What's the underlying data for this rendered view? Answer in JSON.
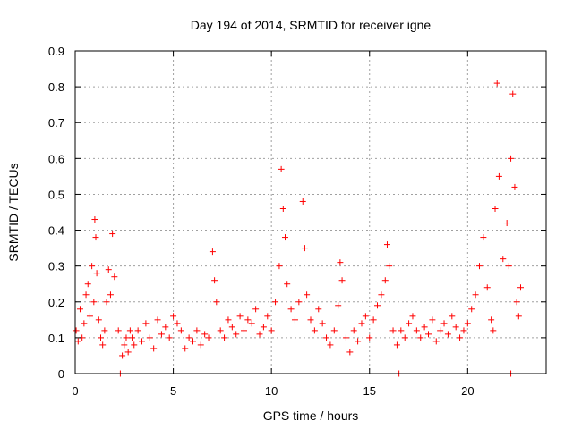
{
  "chart_data": {
    "type": "scatter",
    "title": "Day 194 of 2014, SRMTID for receiver igne",
    "xlabel": "GPS time / hours",
    "ylabel": "SRMTID / TECUs",
    "xlim": [
      0,
      24
    ],
    "ylim": [
      0,
      0.9
    ],
    "xticks": [
      0,
      5,
      10,
      15,
      20
    ],
    "yticks": [
      0,
      0.1,
      0.2,
      0.3,
      0.4,
      0.5,
      0.6,
      0.7,
      0.8,
      0.9
    ],
    "xtick_labels": [
      "0",
      "5",
      "10",
      "15",
      "20"
    ],
    "ytick_labels": [
      "0",
      "0.1",
      "0.2",
      "0.3",
      "0.4",
      "0.5",
      "0.6",
      "0.7",
      "0.8",
      "0.9"
    ],
    "grid": true,
    "marker": "+",
    "series_color": "#ff0000",
    "x": [
      0.05,
      0.15,
      0.25,
      0.35,
      0.45,
      0.55,
      0.65,
      0.75,
      0.85,
      0.95,
      1.0,
      1.05,
      1.1,
      1.2,
      1.3,
      1.4,
      1.5,
      1.6,
      1.7,
      1.8,
      1.9,
      2.0,
      2.2,
      2.4,
      2.5,
      2.6,
      2.7,
      2.8,
      2.9,
      3.0,
      3.2,
      3.4,
      3.6,
      3.8,
      4.0,
      4.2,
      4.4,
      4.6,
      4.8,
      5.0,
      5.2,
      5.4,
      5.6,
      5.8,
      6.0,
      6.2,
      6.4,
      6.6,
      6.8,
      7.0,
      7.1,
      7.2,
      7.4,
      7.6,
      7.8,
      8.0,
      8.2,
      8.4,
      8.6,
      8.8,
      9.0,
      9.2,
      9.4,
      9.6,
      9.8,
      10.0,
      10.2,
      10.4,
      10.5,
      10.6,
      10.7,
      10.8,
      11.0,
      11.2,
      11.4,
      11.6,
      11.7,
      11.8,
      12.0,
      12.2,
      12.4,
      12.6,
      12.8,
      13.0,
      13.2,
      13.4,
      13.5,
      13.6,
      13.8,
      14.0,
      14.2,
      14.4,
      14.6,
      14.8,
      15.0,
      15.2,
      15.4,
      15.6,
      15.8,
      15.9,
      16.0,
      16.2,
      16.4,
      16.6,
      16.8,
      17.0,
      17.2,
      17.4,
      17.6,
      17.8,
      18.0,
      18.2,
      18.4,
      18.6,
      18.8,
      19.0,
      19.2,
      19.4,
      19.6,
      19.8,
      20.0,
      20.2,
      20.4,
      20.6,
      20.8,
      21.0,
      21.2,
      21.3,
      21.4,
      21.5,
      21.6,
      21.8,
      22.0,
      22.1,
      22.2,
      22.3,
      22.4,
      22.5,
      22.6,
      22.7,
      2.3,
      16.5,
      22.2
    ],
    "y": [
      0.12,
      0.09,
      0.18,
      0.1,
      0.14,
      0.22,
      0.25,
      0.16,
      0.3,
      0.2,
      0.43,
      0.38,
      0.28,
      0.15,
      0.1,
      0.08,
      0.12,
      0.2,
      0.29,
      0.22,
      0.39,
      0.27,
      0.12,
      0.05,
      0.08,
      0.1,
      0.06,
      0.12,
      0.1,
      0.08,
      0.12,
      0.09,
      0.14,
      0.1,
      0.07,
      0.15,
      0.11,
      0.13,
      0.1,
      0.16,
      0.14,
      0.12,
      0.07,
      0.1,
      0.09,
      0.12,
      0.08,
      0.11,
      0.1,
      0.34,
      0.26,
      0.2,
      0.12,
      0.1,
      0.15,
      0.13,
      0.11,
      0.16,
      0.12,
      0.15,
      0.14,
      0.18,
      0.11,
      0.13,
      0.16,
      0.12,
      0.2,
      0.3,
      0.57,
      0.46,
      0.38,
      0.25,
      0.18,
      0.15,
      0.2,
      0.48,
      0.35,
      0.22,
      0.15,
      0.12,
      0.18,
      0.14,
      0.1,
      0.08,
      0.12,
      0.19,
      0.31,
      0.26,
      0.1,
      0.06,
      0.12,
      0.09,
      0.14,
      0.16,
      0.1,
      0.15,
      0.19,
      0.22,
      0.26,
      0.36,
      0.3,
      0.12,
      0.08,
      0.12,
      0.1,
      0.14,
      0.16,
      0.12,
      0.1,
      0.13,
      0.11,
      0.15,
      0.09,
      0.12,
      0.14,
      0.11,
      0.16,
      0.13,
      0.1,
      0.12,
      0.14,
      0.18,
      0.22,
      0.3,
      0.38,
      0.24,
      0.15,
      0.12,
      0.46,
      0.81,
      0.55,
      0.32,
      0.42,
      0.3,
      0.6,
      0.78,
      0.52,
      0.2,
      0.16,
      0.24,
      0.0,
      0.0,
      0.0
    ]
  }
}
